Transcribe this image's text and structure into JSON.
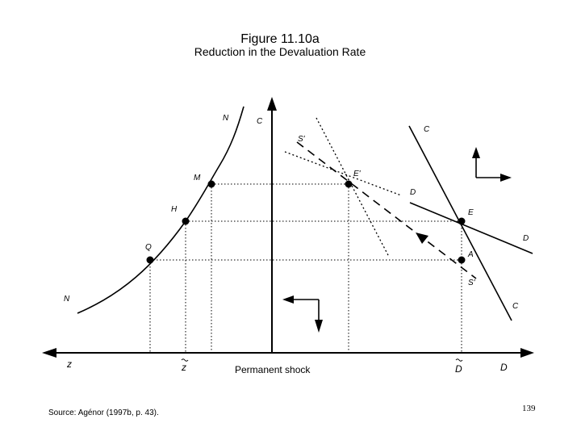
{
  "figure": {
    "title": "Figure 11.10a",
    "subtitle": "Reduction in the Devaluation Rate"
  },
  "labels": {
    "N_top": "N",
    "N_bottom": "N",
    "C_axis": "C",
    "C_top": "C",
    "C_bottom": "C",
    "S_prime_top": "S'",
    "S_prime_bottom": "S'",
    "E_prime": "E'",
    "E": "E",
    "D_upper": "D",
    "D_lower": "D",
    "M": "M",
    "H": "H",
    "Q": "Q",
    "A": "A",
    "z_axis": "z",
    "z_tilde": "z",
    "D_tilde": "D",
    "D_axis": "D",
    "permanent_shock": "Permanent shock"
  },
  "footer": {
    "source": "Source: Agénor (1997b, p. 43).",
    "page_number": "139"
  }
}
